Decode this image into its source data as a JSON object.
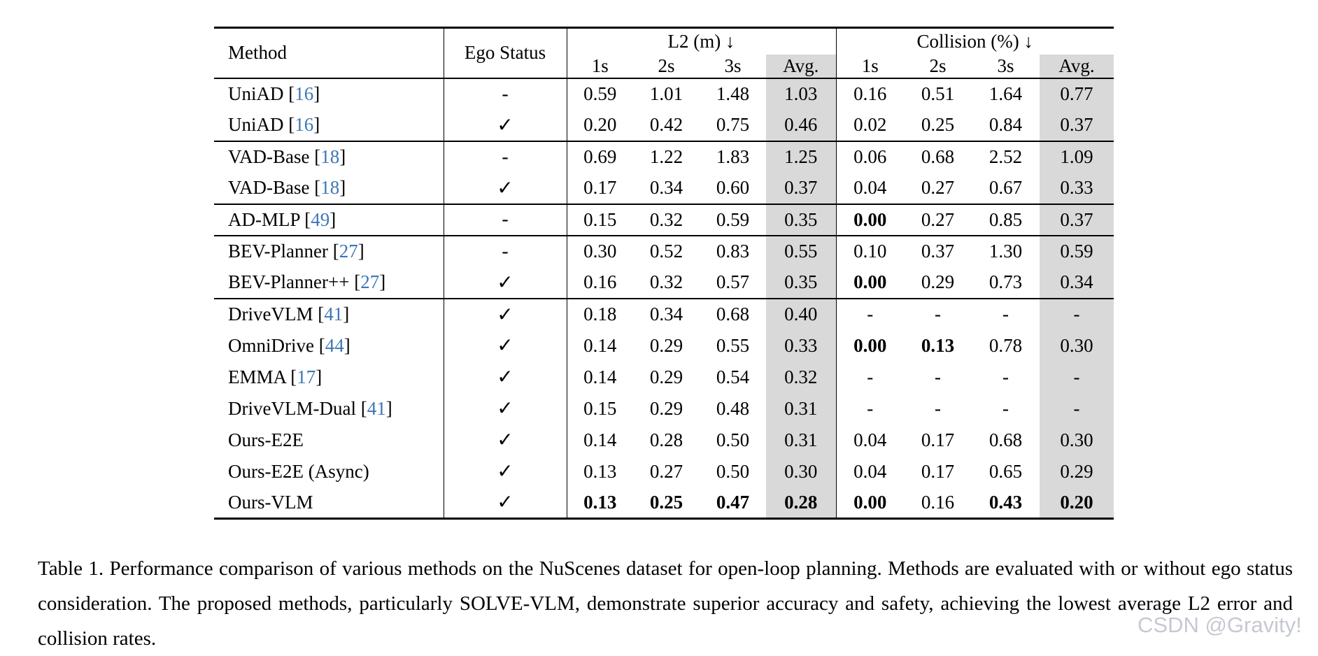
{
  "colors": {
    "citation_blue": "#3d76b6",
    "avg_highlight": "#d9d9d9"
  },
  "table": {
    "header": {
      "method": "Method",
      "ego_status": "Ego Status",
      "l2_group": "L2 (m) ↓",
      "collision_group": "Collision (%) ↓",
      "sub_columns": [
        "1s",
        "2s",
        "3s",
        "Avg."
      ]
    },
    "groups": [
      [
        {
          "method": "UniAD",
          "cite": "16",
          "ego": "-",
          "l2": [
            {
              "v": "0.59"
            },
            {
              "v": "1.01"
            },
            {
              "v": "1.48"
            },
            {
              "v": "1.03"
            }
          ],
          "collision": [
            {
              "v": "0.16"
            },
            {
              "v": "0.51"
            },
            {
              "v": "1.64"
            },
            {
              "v": "0.77"
            }
          ]
        },
        {
          "method": "UniAD",
          "cite": "16",
          "ego": "✓",
          "l2": [
            {
              "v": "0.20"
            },
            {
              "v": "0.42"
            },
            {
              "v": "0.75"
            },
            {
              "v": "0.46"
            }
          ],
          "collision": [
            {
              "v": "0.02"
            },
            {
              "v": "0.25"
            },
            {
              "v": "0.84"
            },
            {
              "v": "0.37"
            }
          ]
        }
      ],
      [
        {
          "method": "VAD-Base",
          "cite": "18",
          "ego": "-",
          "l2": [
            {
              "v": "0.69"
            },
            {
              "v": "1.22"
            },
            {
              "v": "1.83"
            },
            {
              "v": "1.25"
            }
          ],
          "collision": [
            {
              "v": "0.06"
            },
            {
              "v": "0.68"
            },
            {
              "v": "2.52"
            },
            {
              "v": "1.09"
            }
          ]
        },
        {
          "method": "VAD-Base",
          "cite": "18",
          "ego": "✓",
          "l2": [
            {
              "v": "0.17"
            },
            {
              "v": "0.34"
            },
            {
              "v": "0.60"
            },
            {
              "v": "0.37"
            }
          ],
          "collision": [
            {
              "v": "0.04"
            },
            {
              "v": "0.27"
            },
            {
              "v": "0.67"
            },
            {
              "v": "0.33"
            }
          ]
        }
      ],
      [
        {
          "method": "AD-MLP",
          "cite": "49",
          "ego": "-",
          "l2": [
            {
              "v": "0.15"
            },
            {
              "v": "0.32"
            },
            {
              "v": "0.59"
            },
            {
              "v": "0.35"
            }
          ],
          "collision": [
            {
              "v": "0.00",
              "b": true
            },
            {
              "v": "0.27"
            },
            {
              "v": "0.85"
            },
            {
              "v": "0.37"
            }
          ]
        }
      ],
      [
        {
          "method": "BEV-Planner",
          "cite": "27",
          "ego": "-",
          "l2": [
            {
              "v": "0.30"
            },
            {
              "v": "0.52"
            },
            {
              "v": "0.83"
            },
            {
              "v": "0.55"
            }
          ],
          "collision": [
            {
              "v": "0.10"
            },
            {
              "v": "0.37"
            },
            {
              "v": "1.30"
            },
            {
              "v": "0.59"
            }
          ]
        },
        {
          "method": "BEV-Planner++",
          "cite": "27",
          "ego": "✓",
          "l2": [
            {
              "v": "0.16"
            },
            {
              "v": "0.32"
            },
            {
              "v": "0.57"
            },
            {
              "v": "0.35"
            }
          ],
          "collision": [
            {
              "v": "0.00",
              "b": true
            },
            {
              "v": "0.29"
            },
            {
              "v": "0.73"
            },
            {
              "v": "0.34"
            }
          ]
        }
      ],
      [
        {
          "method": "DriveVLM",
          "cite": "41",
          "ego": "✓",
          "l2": [
            {
              "v": "0.18"
            },
            {
              "v": "0.34"
            },
            {
              "v": "0.68"
            },
            {
              "v": "0.40"
            }
          ],
          "collision": [
            {
              "v": "-"
            },
            {
              "v": "-"
            },
            {
              "v": "-"
            },
            {
              "v": "-"
            }
          ]
        },
        {
          "method": "OmniDrive",
          "cite": "44",
          "ego": "✓",
          "l2": [
            {
              "v": "0.14"
            },
            {
              "v": "0.29"
            },
            {
              "v": "0.55"
            },
            {
              "v": "0.33"
            }
          ],
          "collision": [
            {
              "v": "0.00",
              "b": true
            },
            {
              "v": "0.13",
              "b": true
            },
            {
              "v": "0.78"
            },
            {
              "v": "0.30"
            }
          ]
        },
        {
          "method": "EMMA",
          "cite": "17",
          "ego": "✓",
          "l2": [
            {
              "v": "0.14"
            },
            {
              "v": "0.29"
            },
            {
              "v": "0.54"
            },
            {
              "v": "0.32"
            }
          ],
          "collision": [
            {
              "v": "-"
            },
            {
              "v": "-"
            },
            {
              "v": "-"
            },
            {
              "v": "-"
            }
          ]
        },
        {
          "method": "DriveVLM-Dual",
          "cite": "41",
          "ego": "✓",
          "l2": [
            {
              "v": "0.15"
            },
            {
              "v": "0.29"
            },
            {
              "v": "0.48"
            },
            {
              "v": "0.31"
            }
          ],
          "collision": [
            {
              "v": "-"
            },
            {
              "v": "-"
            },
            {
              "v": "-"
            },
            {
              "v": "-"
            }
          ]
        },
        {
          "method": "Ours-E2E",
          "cite": "",
          "ego": "✓",
          "l2": [
            {
              "v": "0.14"
            },
            {
              "v": "0.28"
            },
            {
              "v": "0.50"
            },
            {
              "v": "0.31"
            }
          ],
          "collision": [
            {
              "v": "0.04"
            },
            {
              "v": "0.17"
            },
            {
              "v": "0.68"
            },
            {
              "v": "0.30"
            }
          ]
        },
        {
          "method": "Ours-E2E (Async)",
          "cite": "",
          "ego": "✓",
          "l2": [
            {
              "v": "0.13"
            },
            {
              "v": "0.27"
            },
            {
              "v": "0.50"
            },
            {
              "v": "0.30"
            }
          ],
          "collision": [
            {
              "v": "0.04"
            },
            {
              "v": "0.17"
            },
            {
              "v": "0.65"
            },
            {
              "v": "0.29"
            }
          ]
        },
        {
          "method": "Ours-VLM",
          "cite": "",
          "ego": "✓",
          "l2": [
            {
              "v": "0.13",
              "b": true
            },
            {
              "v": "0.25",
              "b": true
            },
            {
              "v": "0.47",
              "b": true
            },
            {
              "v": "0.28",
              "b": true
            }
          ],
          "collision": [
            {
              "v": "0.00",
              "b": true
            },
            {
              "v": "0.16"
            },
            {
              "v": "0.43",
              "b": true
            },
            {
              "v": "0.20",
              "b": true
            }
          ]
        }
      ]
    ]
  },
  "caption": "Table 1.  Performance comparison of various methods on the NuScenes dataset for open-loop planning.  Methods are evaluated with or without ego status consideration. The proposed methods, particularly SOLVE-VLM, demonstrate superior accuracy and safety, achieving the lowest average L2 error and collision rates.",
  "watermark": "CSDN @Gravity!"
}
